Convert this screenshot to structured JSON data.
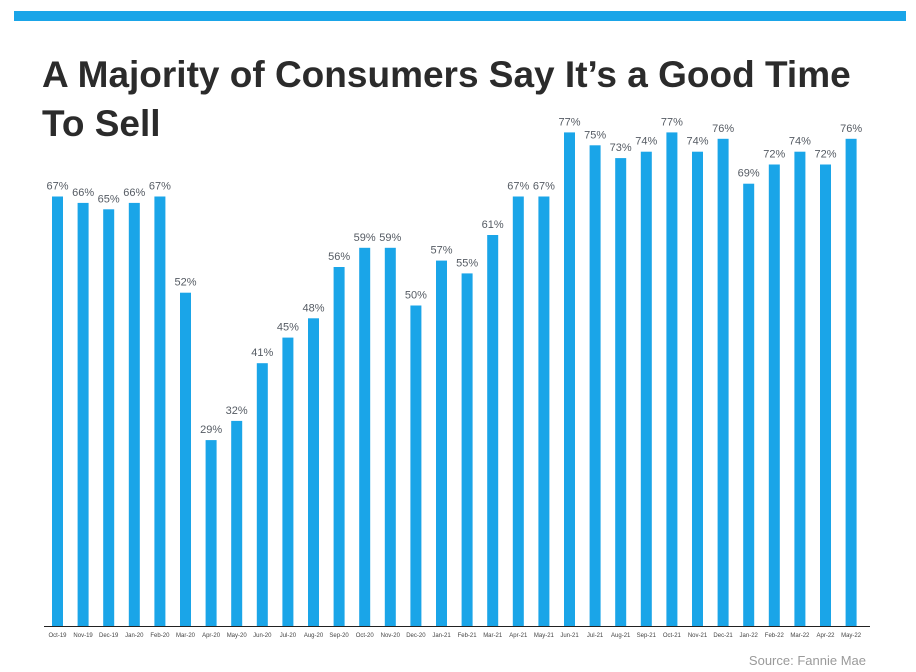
{
  "page": {
    "title": "A Majority of Consumers Say It’s a Good Time To Sell",
    "source": "Source: Fannie Mae"
  },
  "colors": {
    "bar": "#1aa5e8",
    "accent_bar": "#1aa5e8",
    "title": "#2b2b2b",
    "axis": "#222222"
  },
  "chart_data": {
    "type": "bar",
    "title": "A Majority of Consumers Say It’s a Good Time To Sell",
    "xlabel": "",
    "ylabel": "",
    "ylim": [
      0,
      100
    ],
    "unit": "%",
    "grid": false,
    "categories": [
      "Oct-19",
      "Nov-19",
      "Dec-19",
      "Jan-20",
      "Feb-20",
      "Mar-20",
      "Apr-20",
      "May-20",
      "Jun-20",
      "Jul-20",
      "Aug-20",
      "Sep-20",
      "Oct-20",
      "Nov-20",
      "Dec-20",
      "Jan-21",
      "Feb-21",
      "Mar-21",
      "Apr-21",
      "May-21",
      "Jun-21",
      "Jul-21",
      "Aug-21",
      "Sep-21",
      "Oct-21",
      "Nov-21",
      "Dec-21",
      "Jan-22",
      "Feb-22",
      "Mar-22",
      "Apr-22",
      "May-22"
    ],
    "values": [
      67,
      66,
      65,
      66,
      67,
      52,
      29,
      32,
      41,
      45,
      48,
      56,
      59,
      59,
      50,
      57,
      55,
      61,
      67,
      67,
      77,
      75,
      73,
      74,
      77,
      74,
      76,
      69,
      72,
      74,
      72,
      76
    ]
  }
}
